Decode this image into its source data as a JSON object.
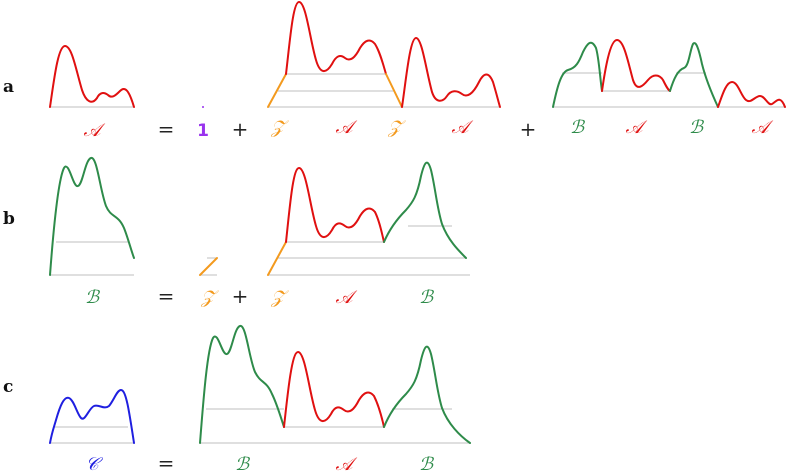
{
  "rows": {
    "a": {
      "label": "a",
      "lhs": "𝒜",
      "eq": "=",
      "one": "1",
      "plus1": "+",
      "t1": "𝒵",
      "t2": "𝒜",
      "t3": "𝒵",
      "t4": "𝒜",
      "plus2": "+",
      "u1": "ℬ",
      "u2": "𝒜",
      "u3": "ℬ",
      "u4": "𝒜"
    },
    "b": {
      "label": "b",
      "lhs": "ℬ",
      "eq": "=",
      "z": "𝒵",
      "plus": "+",
      "t1": "𝒵",
      "t2": "𝒜",
      "t3": "ℬ"
    },
    "c": {
      "label": "c",
      "lhs": "𝒞",
      "eq": "=",
      "t1": "ℬ",
      "t2": "𝒜",
      "t3": "ℬ"
    }
  },
  "colors": {
    "A": "#e01010",
    "B": "#2e8b4a",
    "Z": "#f39a1e",
    "C": "#1f1fe0",
    "one": "#9933ee",
    "baseline": "#bfbfbf"
  }
}
